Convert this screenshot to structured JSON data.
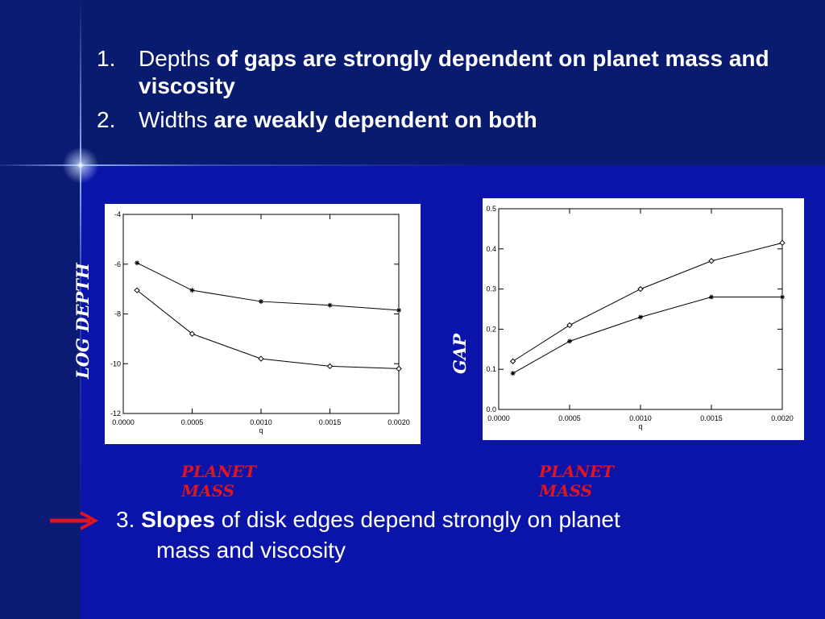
{
  "slide": {
    "bullets": [
      {
        "num": "1.",
        "plain": "Depths",
        "bold": "of gaps are strongly dependent on planet mass and viscosity"
      },
      {
        "num": "2.",
        "plain": "Widths",
        "bold": "are weakly dependent on both"
      }
    ],
    "point3": {
      "num": "3.",
      "bold": "Slopes",
      "rest_line1": "of disk edges depend strongly on planet",
      "rest_line2": "mass and viscosity"
    },
    "colors": {
      "background": "#0a14a8",
      "text": "#ffffff",
      "accent": "#e0141e"
    }
  },
  "chart_data": [
    {
      "type": "line",
      "title": "",
      "xlabel": "q",
      "ylabel": "",
      "caption_y": "LOG DEPTH",
      "caption_x": [
        "PLANET",
        "MASS"
      ],
      "xlim": [
        0.0,
        0.002
      ],
      "ylim": [
        -12,
        -4
      ],
      "xticks": [
        "0.0000",
        "0.0005",
        "0.0010",
        "0.0015",
        "0.0020"
      ],
      "yticks": [
        "-12",
        "-10",
        "-8",
        "-6",
        "-4"
      ],
      "grid": false,
      "series": [
        {
          "marker": "asterisk",
          "x": [
            0.0001,
            0.0005,
            0.001,
            0.0015,
            0.002
          ],
          "y": [
            -5.95,
            -7.05,
            -7.5,
            -7.65,
            -7.85
          ]
        },
        {
          "marker": "diamond",
          "x": [
            0.0001,
            0.0005,
            0.001,
            0.0015,
            0.002
          ],
          "y": [
            -7.05,
            -8.8,
            -9.8,
            -10.1,
            -10.2
          ]
        }
      ]
    },
    {
      "type": "line",
      "title": "",
      "xlabel": "q",
      "ylabel": "",
      "caption_y": "GAP",
      "caption_x": [
        "PLANET",
        "MASS"
      ],
      "xlim": [
        0.0,
        0.002
      ],
      "ylim": [
        0.0,
        0.5
      ],
      "xticks": [
        "0.0000",
        "0.0005",
        "0.0010",
        "0.0015",
        "0.0020"
      ],
      "yticks": [
        "0.0",
        "0.1",
        "0.2",
        "0.3",
        "0.4",
        "0.5"
      ],
      "grid": false,
      "series": [
        {
          "marker": "diamond",
          "x": [
            0.0001,
            0.0005,
            0.001,
            0.0015,
            0.002
          ],
          "y": [
            0.12,
            0.21,
            0.3,
            0.37,
            0.415
          ]
        },
        {
          "marker": "asterisk",
          "x": [
            0.0001,
            0.0005,
            0.001,
            0.0015,
            0.002
          ],
          "y": [
            0.09,
            0.17,
            0.23,
            0.28,
            0.28
          ]
        }
      ]
    }
  ]
}
